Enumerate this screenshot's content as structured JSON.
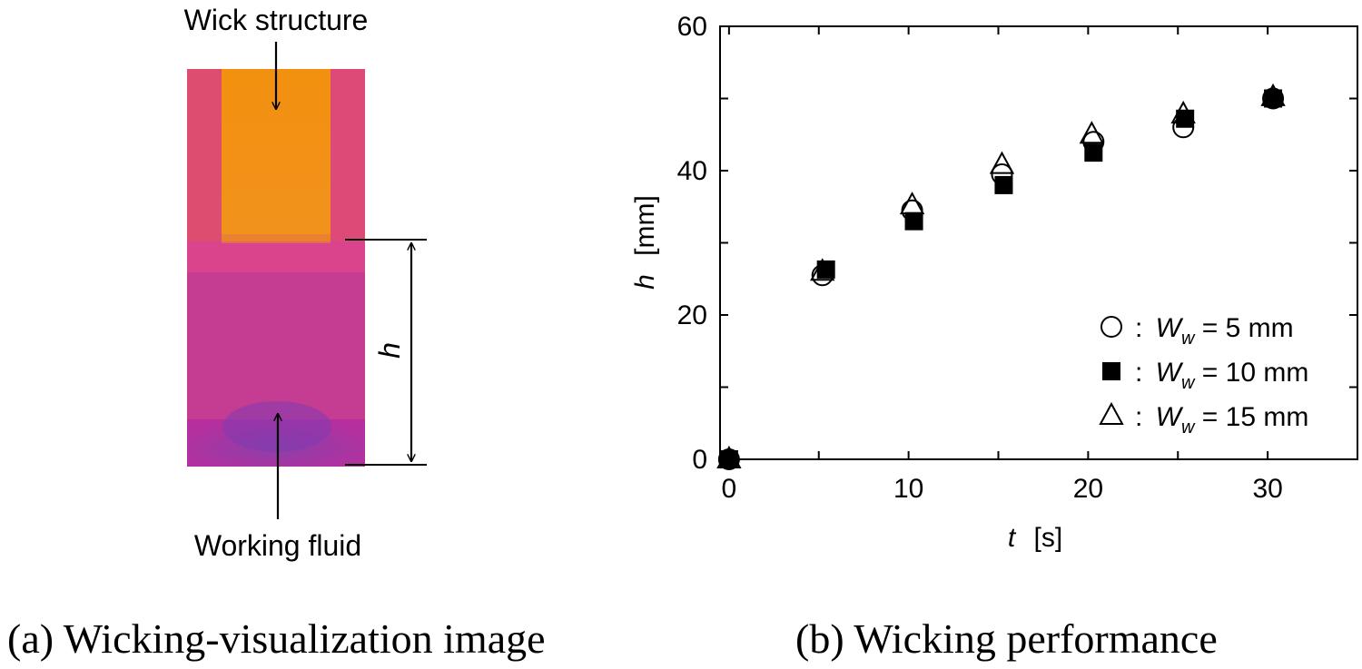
{
  "panel_a": {
    "top_label": "Wick structure",
    "bottom_label": "Working fluid",
    "dimension_label": "h",
    "caption": "(a) Wicking-visualization image"
  },
  "panel_b": {
    "caption": "(b) Wicking performance"
  },
  "chart_data": {
    "type": "scatter",
    "title": "",
    "xlabel_var": "t",
    "xlabel_unit": "[s]",
    "ylabel_var": "h",
    "ylabel_unit": "[mm]",
    "xlim": [
      -0.5,
      35
    ],
    "ylim": [
      0,
      60
    ],
    "xticks": [
      0,
      10,
      20,
      30
    ],
    "yticks": [
      0,
      20,
      40,
      60
    ],
    "grid": false,
    "legend_position": "bottom-right",
    "series": [
      {
        "name": "W_w = 5 mm",
        "legend_prefix": ": ",
        "legend_var": "W",
        "legend_sub": "w",
        "legend_suffix": " = 5 mm",
        "marker": "circle-open",
        "x": [
          0,
          5.2,
          10.2,
          15.2,
          20.3,
          25.3,
          30.3
        ],
        "y": [
          0,
          25.5,
          34.5,
          39.5,
          44.0,
          46.0,
          50.0
        ]
      },
      {
        "name": "W_w = 10 mm",
        "legend_prefix": ": ",
        "legend_var": "W",
        "legend_sub": "w",
        "legend_suffix": " = 10 mm",
        "marker": "square-filled",
        "x": [
          0,
          5.4,
          10.3,
          15.3,
          20.3,
          25.4,
          30.3
        ],
        "y": [
          0,
          26.3,
          33.0,
          38.0,
          42.5,
          47.2,
          50.0
        ]
      },
      {
        "name": "W_w = 15 mm",
        "legend_prefix": ": ",
        "legend_var": "W",
        "legend_sub": "w",
        "legend_suffix": " = 15 mm",
        "marker": "triangle-open",
        "x": [
          0,
          5.2,
          10.2,
          15.2,
          20.2,
          25.3,
          30.3
        ],
        "y": [
          0,
          26.0,
          35.2,
          40.8,
          45.0,
          47.8,
          50.2
        ]
      }
    ]
  }
}
